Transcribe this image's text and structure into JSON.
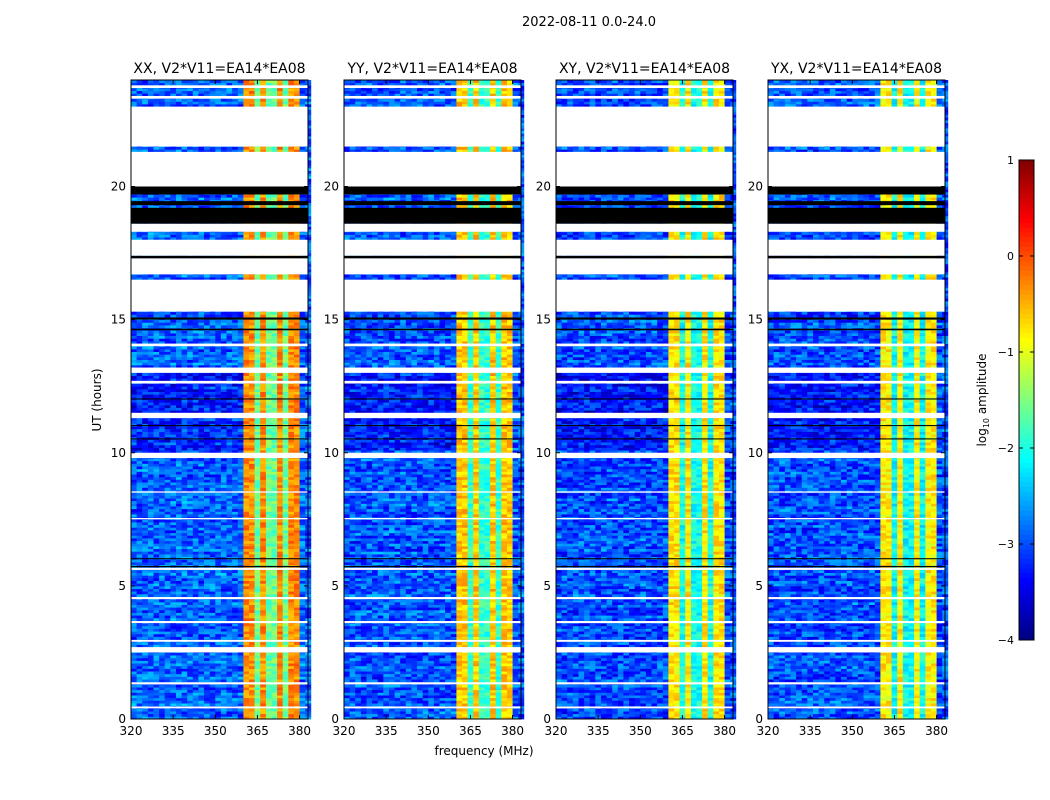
{
  "chart_data": {
    "type": "heatmap",
    "title": "2022-08-11 0.0-24.0",
    "xlabel": "frequency (MHz)",
    "ylabel": "UT (hours)",
    "xlim": [
      320,
      383
    ],
    "ylim": [
      0,
      24
    ],
    "xticks": [
      320,
      335,
      350,
      365,
      380
    ],
    "xtick_labels": [
      "320",
      "335",
      "350",
      "365",
      "380"
    ],
    "yticks": [
      0,
      5,
      10,
      15,
      20
    ],
    "ytick_labels": [
      "0",
      "5",
      "10",
      "15",
      "20"
    ],
    "panels": [
      {
        "title": "XX, V2*V11=EA14*EA08",
        "background_level": -2.9,
        "band_level": -0.3
      },
      {
        "title": "YY, V2*V11=EA14*EA08",
        "background_level": -2.95,
        "band_level": -0.6
      },
      {
        "title": "XY, V2*V11=EA14*EA08",
        "background_level": -3.0,
        "band_level": -0.75
      },
      {
        "title": "YX, V2*V11=EA14*EA08",
        "background_level": -3.0,
        "band_level": -0.8
      }
    ],
    "rfi_band_mhz": [
      360,
      379.5
    ],
    "band_notches_mhz": [
      365,
      370,
      375
    ],
    "flagged_hours": [
      [
        21.5,
        23.0
      ],
      [
        20.0,
        21.3
      ],
      [
        18.3,
        18.6
      ],
      [
        17.4,
        18.0
      ],
      [
        16.7,
        17.3
      ],
      [
        15.3,
        16.5
      ],
      [
        23.3,
        23.4
      ],
      [
        23.7,
        23.8
      ],
      [
        14.0,
        14.1
      ],
      [
        13.0,
        13.2
      ],
      [
        12.6,
        12.7
      ],
      [
        11.3,
        11.5
      ],
      [
        9.8,
        10.0
      ],
      [
        8.5,
        8.55
      ],
      [
        7.5,
        7.55
      ],
      [
        5.6,
        5.68
      ],
      [
        4.5,
        4.58
      ],
      [
        3.6,
        3.68
      ],
      [
        2.5,
        2.7
      ],
      [
        2.9,
        2.97
      ],
      [
        1.3,
        1.38
      ],
      [
        0.4,
        0.47
      ]
    ],
    "zero_hours": [
      [
        19.7,
        20.0
      ],
      [
        18.6,
        19.2
      ],
      [
        17.3,
        17.4
      ],
      [
        19.3,
        19.45
      ],
      [
        15.0,
        15.08
      ],
      [
        14.6,
        14.66
      ],
      [
        12.0,
        12.04
      ],
      [
        11.0,
        11.04
      ],
      [
        10.5,
        10.54
      ],
      [
        5.7,
        5.75
      ],
      [
        6.0,
        6.04
      ]
    ],
    "colorbar": {
      "label": "log10 amplitude",
      "range": [
        -4,
        1
      ],
      "colormap": "jet",
      "ticks": [
        1,
        0,
        -1,
        -2,
        -3,
        -4
      ],
      "tick_labels": [
        "1",
        "0",
        "−1",
        "−2",
        "−3",
        "−4"
      ]
    }
  }
}
